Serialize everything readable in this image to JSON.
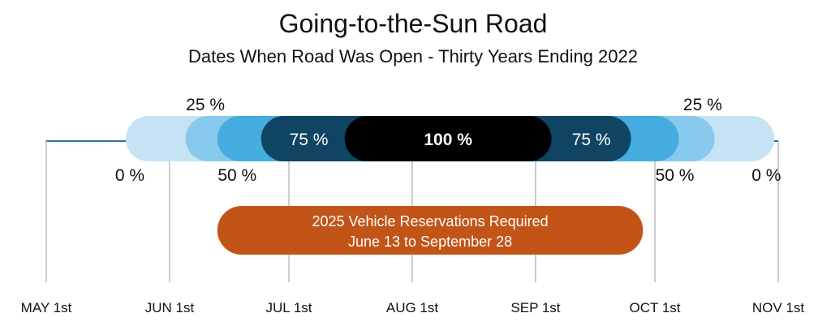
{
  "chart_data": {
    "type": "range-band",
    "title": "Going-to-the-Sun Road",
    "subtitle": "Dates When Road Was Open - Thirty Years Ending 2022",
    "x_ticks": [
      "MAY 1st",
      "JUN 1st",
      "JUL 1st",
      "AUG 1st",
      "SEP 1st",
      "OCT 1st",
      "NOV 1st"
    ],
    "x_tick_dates": [
      "05-01",
      "06-01",
      "07-01",
      "08-01",
      "09-01",
      "10-01",
      "11-01"
    ],
    "xlim": [
      "05-01",
      "11-01"
    ],
    "bands": [
      {
        "label": "0 %",
        "start": "05-21",
        "end": "10-31",
        "color": "#c5e3f5",
        "label_color": "#111111",
        "show_inside": false
      },
      {
        "label": "25 %",
        "start": "06-05",
        "end": "10-16",
        "color": "#86c9ec",
        "label_color": "#111111",
        "show_inside": false
      },
      {
        "label": "50 %",
        "start": "06-13",
        "end": "10-07",
        "color": "#44acdf",
        "label_color": "#111111",
        "show_inside": false
      },
      {
        "label": "75 %",
        "start": "06-24",
        "end": "09-25",
        "color": "#0f4563",
        "label_color": "#ffffff",
        "show_inside": true
      },
      {
        "label": "100 %",
        "start": "07-15",
        "end": "09-05",
        "color": "#000000",
        "label_color": "#ffffff",
        "show_inside": true
      }
    ],
    "outside_labels": [
      {
        "text": "0 %",
        "date": "05-22",
        "position": "below"
      },
      {
        "text": "25 %",
        "date": "06-10",
        "position": "above"
      },
      {
        "text": "50 %",
        "date": "06-18",
        "position": "below"
      },
      {
        "text": "50 %",
        "date": "10-06",
        "position": "below"
      },
      {
        "text": "25 %",
        "date": "10-13",
        "position": "above"
      },
      {
        "text": "0 %",
        "date": "10-29",
        "position": "below"
      }
    ],
    "inside_labels": [
      {
        "text": "75 %",
        "date": "07-06",
        "color": "#ffffff",
        "bold": false
      },
      {
        "text": "100 %",
        "date": "08-10",
        "color": "#ffffff",
        "bold": true
      },
      {
        "text": "75 %",
        "date": "09-15",
        "color": "#ffffff",
        "bold": false
      }
    ],
    "reservation": {
      "line1": "2025 Vehicle Reservations Required",
      "line2": "June 13 to September 28",
      "start": "06-13",
      "end": "09-28",
      "color": "#c35417"
    },
    "axis_color": "#2f6f9f",
    "tick_line_color": "#9a9a9a"
  }
}
